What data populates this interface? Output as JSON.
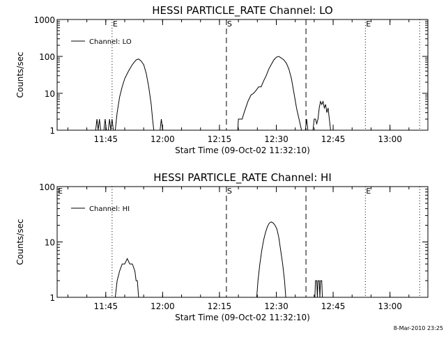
{
  "chart_data": [
    {
      "type": "line",
      "title": "HESSI PARTICLE_RATE Channel: LO",
      "xlabel": "Start Time (09-Oct-02 11:32:10)",
      "ylabel": "Counts/sec",
      "y_scale": "log",
      "ylim": [
        1,
        1000
      ],
      "y_ticks": [
        1,
        10,
        100,
        1000
      ],
      "y_tick_labels": [
        "1",
        "10",
        "100",
        "1000"
      ],
      "xlim": [
        "11:32:10",
        "13:10:00"
      ],
      "x_ticks": [
        "11:45",
        "12:00",
        "12:15",
        "12:30",
        "12:45",
        "13:00"
      ],
      "legend": {
        "label": "Channel: LO",
        "position": "top-left"
      },
      "grid": false,
      "markers": [
        {
          "time": "11:46:40",
          "style": "dotted",
          "label": "E"
        },
        {
          "time": "12:16:50",
          "style": "dashed",
          "label": "S"
        },
        {
          "time": "12:37:50",
          "style": "dashed",
          "label": ""
        },
        {
          "time": "12:53:30",
          "style": "dotted",
          "label": "E"
        },
        {
          "time": "13:07:50",
          "style": "dotted",
          "label": ""
        }
      ],
      "series": [
        {
          "name": "Channel: LO",
          "segments": [
            [
              [
                "11:42:20",
                1
              ],
              [
                "11:42:40",
                2
              ],
              [
                "11:43:00",
                1
              ],
              [
                "11:43:20",
                2
              ],
              [
                "11:43:40",
                1
              ]
            ],
            [
              [
                "11:44:30",
                1
              ],
              [
                "11:44:50",
                2
              ],
              [
                "11:45:10",
                1
              ]
            ],
            [
              [
                "11:45:40",
                1
              ],
              [
                "11:46:00",
                2
              ],
              [
                "11:46:20",
                1
              ],
              [
                "11:46:40",
                2
              ],
              [
                "11:47:00",
                1
              ]
            ],
            [
              [
                "11:47:30",
                1
              ],
              [
                "11:48:00",
                3
              ],
              [
                "11:48:40",
                8
              ],
              [
                "11:49:20",
                15
              ],
              [
                "11:50:00",
                25
              ],
              [
                "11:51:00",
                40
              ],
              [
                "11:52:00",
                60
              ],
              [
                "11:53:00",
                80
              ],
              [
                "11:53:40",
                85
              ],
              [
                "11:54:20",
                75
              ],
              [
                "11:55:00",
                60
              ],
              [
                "11:55:40",
                35
              ],
              [
                "11:56:20",
                15
              ],
              [
                "11:57:00",
                5
              ],
              [
                "11:57:20",
                2
              ],
              [
                "11:57:40",
                1
              ]
            ],
            [
              [
                "11:59:20",
                1
              ],
              [
                "11:59:40",
                2
              ],
              [
                "12:00:00",
                1
              ]
            ],
            [
              [
                "12:16:50",
                1
              ],
              [
                "12:19:50",
                1
              ],
              [
                "12:20:00",
                2
              ],
              [
                "12:21:00",
                2
              ],
              [
                "12:21:30",
                3
              ],
              [
                "12:22:30",
                6
              ],
              [
                "12:23:20",
                9
              ],
              [
                "12:24:00",
                10
              ],
              [
                "12:24:40",
                12
              ],
              [
                "12:25:20",
                15
              ],
              [
                "12:26:00",
                15
              ],
              [
                "12:26:40",
                22
              ],
              [
                "12:27:20",
                30
              ],
              [
                "12:28:00",
                45
              ],
              [
                "12:28:40",
                60
              ],
              [
                "12:29:20",
                80
              ],
              [
                "12:30:00",
                95
              ],
              [
                "12:30:40",
                100
              ],
              [
                "12:31:20",
                90
              ],
              [
                "12:32:00",
                80
              ],
              [
                "12:32:40",
                65
              ],
              [
                "12:33:20",
                45
              ],
              [
                "12:34:00",
                25
              ],
              [
                "12:34:40",
                10
              ],
              [
                "12:35:20",
                4
              ],
              [
                "12:36:00",
                2
              ],
              [
                "12:36:40",
                1
              ]
            ],
            [
              [
                "12:37:40",
                1
              ],
              [
                "12:38:00",
                2
              ],
              [
                "12:38:20",
                1
              ]
            ],
            [
              [
                "12:39:40",
                1
              ],
              [
                "12:40:00",
                2
              ],
              [
                "12:40:20",
                2
              ],
              [
                "12:40:40",
                1.5
              ],
              [
                "12:41:00",
                2
              ],
              [
                "12:41:20",
                4
              ],
              [
                "12:41:40",
                6
              ],
              [
                "12:42:00",
                5
              ],
              [
                "12:42:20",
                6
              ],
              [
                "12:42:40",
                4
              ],
              [
                "12:43:00",
                5
              ],
              [
                "12:43:20",
                3
              ],
              [
                "12:43:40",
                4
              ],
              [
                "12:44:00",
                2
              ],
              [
                "12:44:20",
                1
              ]
            ]
          ]
        }
      ]
    },
    {
      "type": "line",
      "title": "HESSI PARTICLE_RATE Channel: HI",
      "xlabel": "Start Time (09-Oct-02 11:32:10)",
      "ylabel": "Counts/sec",
      "y_scale": "log",
      "ylim": [
        1,
        100
      ],
      "y_ticks": [
        1,
        10,
        100
      ],
      "y_tick_labels": [
        "1",
        "10",
        "100"
      ],
      "xlim": [
        "11:32:10",
        "13:10:00"
      ],
      "x_ticks": [
        "11:45",
        "12:00",
        "12:15",
        "12:30",
        "12:45",
        "13:00"
      ],
      "legend": {
        "label": "Channel: HI",
        "position": "top-left"
      },
      "grid": false,
      "markers": [
        {
          "time": "11:32:10",
          "style": "none",
          "label": "E"
        },
        {
          "time": "11:46:40",
          "style": "dotted",
          "label": ""
        },
        {
          "time": "12:16:50",
          "style": "dashed",
          "label": "S"
        },
        {
          "time": "12:37:50",
          "style": "dashed",
          "label": ""
        },
        {
          "time": "12:53:30",
          "style": "dotted",
          "label": "E"
        },
        {
          "time": "13:07:50",
          "style": "dotted",
          "label": ""
        }
      ],
      "series": [
        {
          "name": "Channel: HI",
          "segments": [
            [
              [
                "11:47:30",
                1
              ],
              [
                "11:48:00",
                2
              ],
              [
                "11:48:40",
                3
              ],
              [
                "11:49:20",
                4
              ],
              [
                "11:50:00",
                4
              ],
              [
                "11:50:40",
                5
              ],
              [
                "11:51:20",
                4
              ],
              [
                "11:52:00",
                4
              ],
              [
                "11:52:40",
                3
              ],
              [
                "11:53:00",
                2
              ],
              [
                "11:53:20",
                2
              ],
              [
                "11:53:40",
                1
              ]
            ],
            [
              [
                "12:24:50",
                1
              ],
              [
                "12:25:10",
                2
              ],
              [
                "12:25:40",
                4
              ],
              [
                "12:26:10",
                7
              ],
              [
                "12:26:40",
                11
              ],
              [
                "12:27:10",
                15
              ],
              [
                "12:27:40",
                19
              ],
              [
                "12:28:10",
                22
              ],
              [
                "12:28:40",
                23
              ],
              [
                "12:29:10",
                22
              ],
              [
                "12:29:40",
                20
              ],
              [
                "12:30:10",
                17
              ],
              [
                "12:30:40",
                12
              ],
              [
                "12:31:10",
                7
              ],
              [
                "12:31:40",
                4
              ],
              [
                "12:32:10",
                2
              ],
              [
                "12:32:30",
                1
              ]
            ],
            [
              [
                "12:40:10",
                1
              ],
              [
                "12:40:20",
                2
              ],
              [
                "12:40:40",
                2
              ],
              [
                "12:40:50",
                1
              ],
              [
                "12:41:00",
                2
              ],
              [
                "12:41:20",
                2
              ],
              [
                "12:41:30",
                1
              ],
              [
                "12:41:40",
                2
              ],
              [
                "12:42:00",
                2
              ],
              [
                "12:42:10",
                1
              ]
            ]
          ]
        }
      ]
    }
  ],
  "footer": {
    "date": "8-Mar-2010 23:25"
  }
}
